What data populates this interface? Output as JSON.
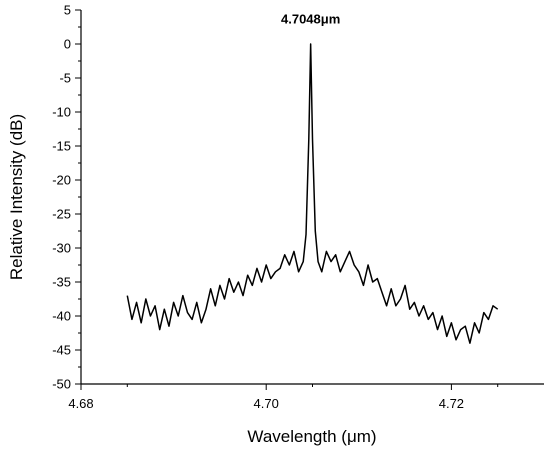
{
  "chart_data": {
    "type": "line",
    "title": "",
    "xlabel": "Wavelength (μm)",
    "ylabel": "Relative Intensity (dB)",
    "xlim": [
      4.68,
      4.73
    ],
    "ylim": [
      -50,
      5
    ],
    "x_ticks": [
      4.68,
      4.7,
      4.72
    ],
    "x_tick_labels": [
      "4.68",
      "4.70",
      "4.72"
    ],
    "y_ticks": [
      5,
      0,
      -5,
      -10,
      -15,
      -20,
      -25,
      -30,
      -35,
      -40,
      -45,
      -50
    ],
    "y_tick_labels": [
      "5",
      "0",
      "-5",
      "-10",
      "-15",
      "-20",
      "-25",
      "-30",
      "-35",
      "-40",
      "-45",
      "-50"
    ],
    "grid": false,
    "legend": "none",
    "annotations": [
      {
        "text": "4.7048μm",
        "x": 4.7048,
        "y": 3.0
      }
    ],
    "series": [
      {
        "color": "#000000",
        "x": [
          4.685,
          4.6855,
          4.686,
          4.6865,
          4.687,
          4.6875,
          4.688,
          4.6885,
          4.689,
          4.6895,
          4.69,
          4.6905,
          4.691,
          4.6915,
          4.692,
          4.6925,
          4.693,
          4.6935,
          4.694,
          4.6945,
          4.695,
          4.6955,
          4.696,
          4.6965,
          4.697,
          4.6975,
          4.698,
          4.6985,
          4.699,
          4.6995,
          4.7,
          4.7005,
          4.701,
          4.7015,
          4.702,
          4.7025,
          4.703,
          4.7035,
          4.704,
          4.7043,
          4.7046,
          4.7048,
          4.705,
          4.7053,
          4.7056,
          4.706,
          4.7065,
          4.707,
          4.7075,
          4.708,
          4.7085,
          4.709,
          4.7095,
          4.71,
          4.7105,
          4.711,
          4.7115,
          4.712,
          4.7125,
          4.713,
          4.7135,
          4.714,
          4.7145,
          4.715,
          4.7155,
          4.716,
          4.7165,
          4.717,
          4.7175,
          4.718,
          4.7185,
          4.719,
          4.7195,
          4.72,
          4.7205,
          4.721,
          4.7215,
          4.722,
          4.7225,
          4.723,
          4.7235,
          4.724,
          4.7245,
          4.725
        ],
        "y": [
          -37.0,
          -40.5,
          -38.0,
          -41.0,
          -37.5,
          -40.0,
          -38.5,
          -42.0,
          -39.0,
          -41.5,
          -38.0,
          -40.0,
          -37.0,
          -39.5,
          -40.5,
          -38.0,
          -41.0,
          -39.0,
          -36.0,
          -38.5,
          -35.5,
          -37.5,
          -34.5,
          -36.5,
          -35.0,
          -37.0,
          -34.0,
          -35.5,
          -33.0,
          -35.0,
          -32.5,
          -34.5,
          -33.5,
          -33.0,
          -31.0,
          -32.5,
          -30.5,
          -33.5,
          -32.0,
          -28.0,
          -14.0,
          0.0,
          -14.0,
          -27.5,
          -32.0,
          -33.5,
          -30.5,
          -32.0,
          -31.0,
          -33.5,
          -32.0,
          -30.5,
          -32.5,
          -33.5,
          -35.5,
          -32.5,
          -35.0,
          -34.5,
          -36.5,
          -38.5,
          -36.0,
          -38.5,
          -37.5,
          -35.5,
          -39.0,
          -38.0,
          -40.0,
          -38.5,
          -40.5,
          -39.5,
          -42.0,
          -40.0,
          -43.0,
          -41.0,
          -43.5,
          -42.0,
          -41.5,
          -44.0,
          -41.0,
          -42.5,
          -39.5,
          -40.5,
          -38.5,
          -39.0
        ]
      }
    ]
  }
}
